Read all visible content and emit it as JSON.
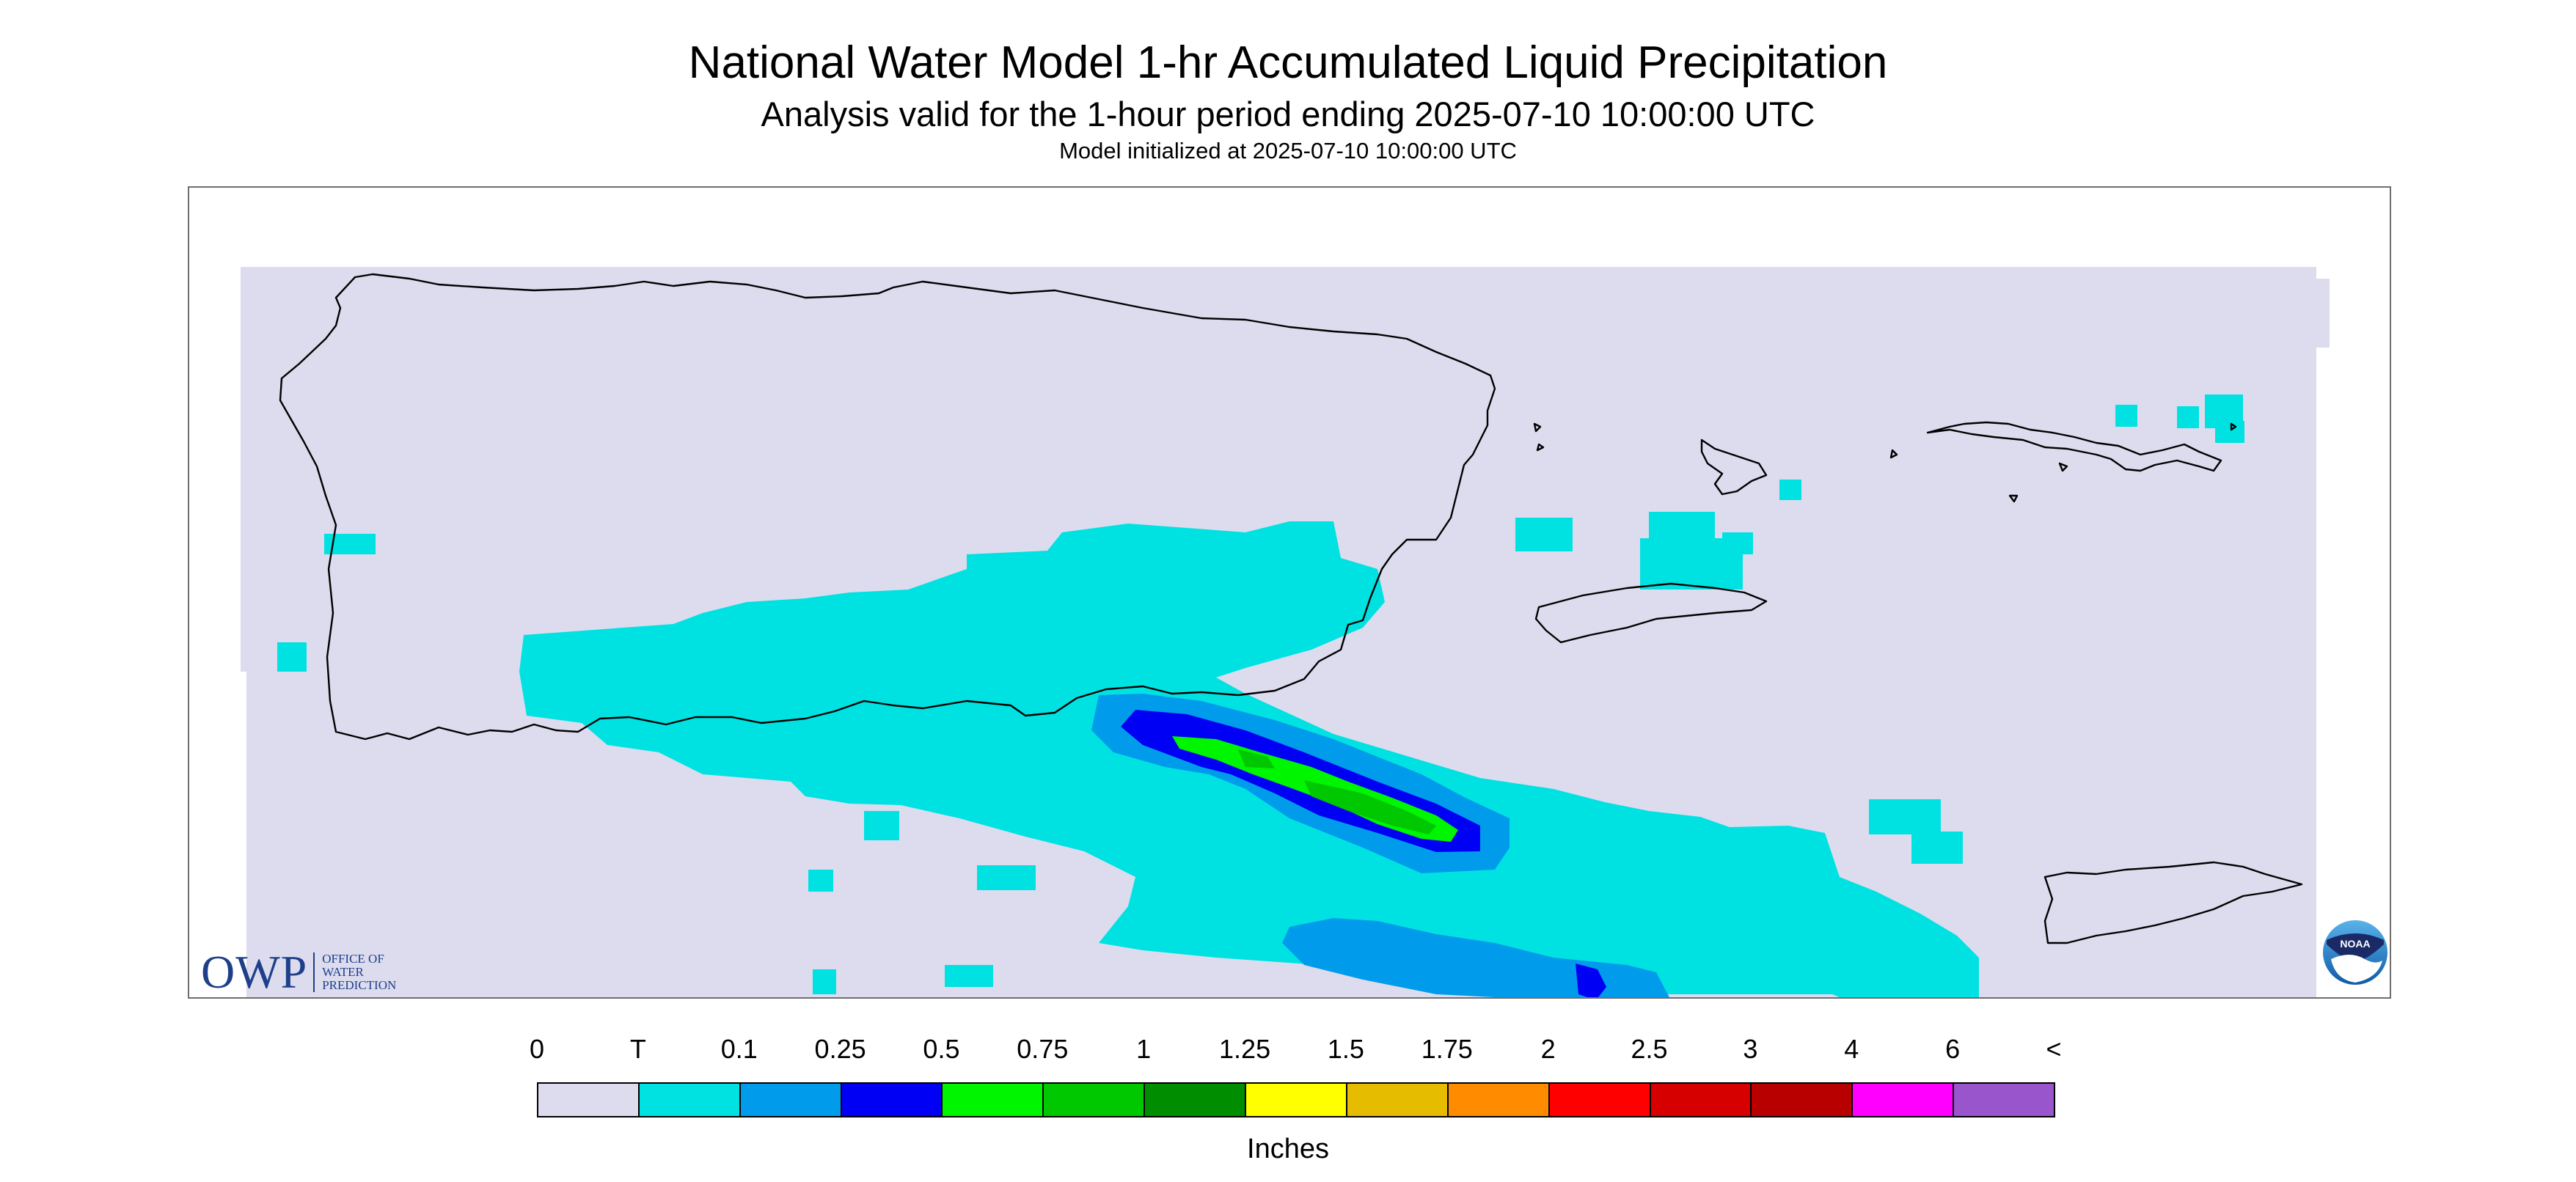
{
  "header": {
    "title": "National Water Model 1-hr Accumulated Liquid Precipitation",
    "subtitle": "Analysis valid for the 1-hour period ending 2025-07-10 10:00:00 UTC",
    "init_line": "Model initialized at 2025-07-10 10:00:00 UTC"
  },
  "map": {
    "region_shown": [
      "Puerto Rico",
      "Vieques",
      "Culebra",
      "U.S. Virgin Islands"
    ],
    "colors": {
      "background_no_precip": "#dcdcee",
      "outline": "#000000",
      "frame": "#6e6e6e"
    },
    "precip_field_levels_present": [
      "T",
      "0.1",
      "0.25",
      "0.5",
      "0.75"
    ]
  },
  "logos": {
    "owp_mark": "OWP",
    "owp_text_lines": [
      "OFFICE OF",
      "WATER",
      "PREDICTION"
    ],
    "noaa_text": "NOAA"
  },
  "legend": {
    "labels": [
      "0",
      "T",
      "0.1",
      "0.25",
      "0.5",
      "0.75",
      "1",
      "1.25",
      "1.5",
      "1.75",
      "2",
      "2.5",
      "3",
      "4",
      "6",
      "<"
    ],
    "colors": [
      "#dcdcee",
      "#00e2e2",
      "#009ceb",
      "#0000f5",
      "#00f500",
      "#00c800",
      "#008e00",
      "#ffff00",
      "#e6bc00",
      "#ff8c00",
      "#ff0000",
      "#d60000",
      "#b80000",
      "#ff00ff",
      "#9955cc"
    ],
    "unit": "Inches"
  }
}
